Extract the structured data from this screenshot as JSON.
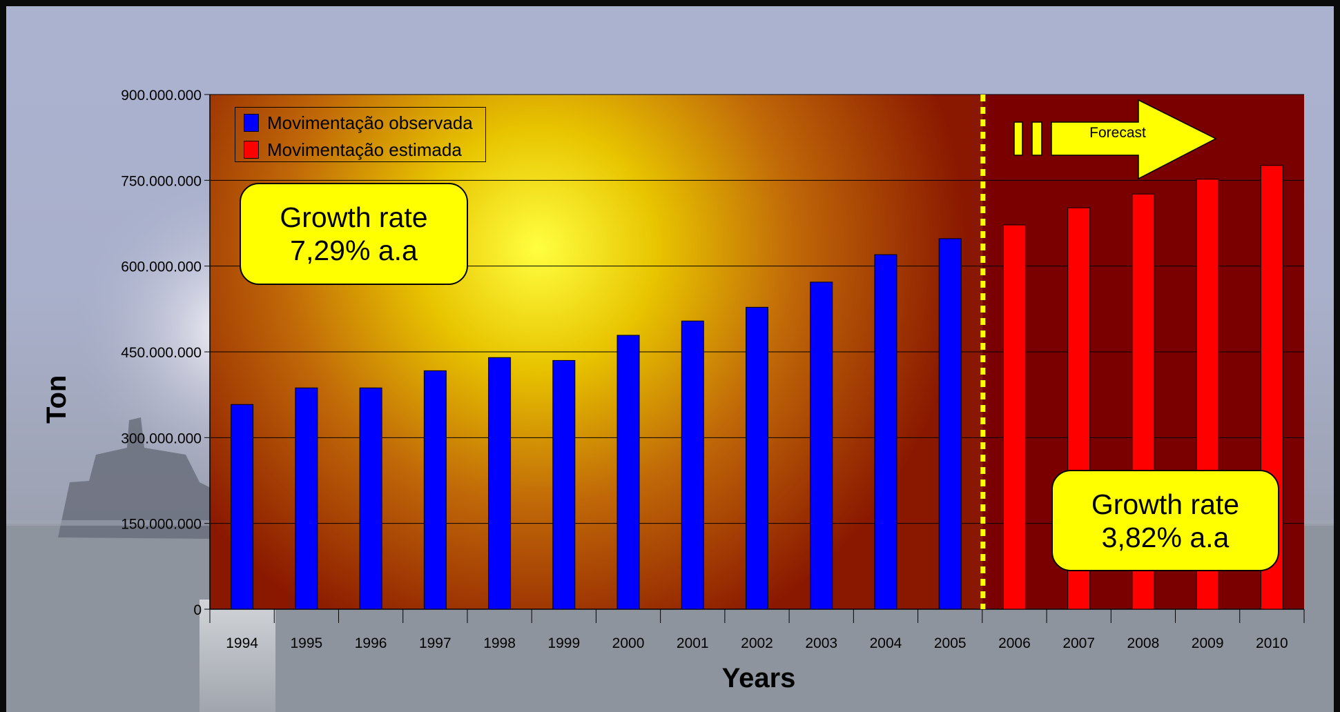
{
  "colors": {
    "observed": "#0000ff",
    "estimated": "#ff0000",
    "callout": "#ffff00",
    "divider": "#ffff00",
    "forecast_arrow": "#ffff00",
    "forecast_region": "#7a0000"
  },
  "growth_rate_observed": [
    "Growth rate",
    "7,29% a.a"
  ],
  "growth_rate_estimated": [
    "Growth rate",
    "3,82% a.a"
  ],
  "forecast_label": "Forecast",
  "legend": {
    "observed_label": "Movimentação observada",
    "estimated_label": "Movimentação estimada"
  },
  "chart_data": {
    "type": "bar",
    "title": "",
    "xlabel": "Years",
    "ylabel": "Ton",
    "categories": [
      "1994",
      "1995",
      "1996",
      "1997",
      "1998",
      "1999",
      "2000",
      "2001",
      "2002",
      "2003",
      "2004",
      "2005",
      "2006",
      "2007",
      "2008",
      "2009",
      "2010"
    ],
    "ylim": [
      0,
      900000000
    ],
    "yticks": [
      0,
      150000000,
      300000000,
      450000000,
      600000000,
      750000000,
      900000000
    ],
    "ytick_labels": [
      "0",
      "150.000.000",
      "300.000.000",
      "450.000.000",
      "600.000.000",
      "750.000.000",
      "900.000.000"
    ],
    "grid": true,
    "legend_position": "top-left",
    "series": [
      {
        "name": "Movimentação observada",
        "color": "#0000ff",
        "values": [
          358000000,
          387000000,
          387000000,
          417000000,
          440000000,
          435000000,
          479000000,
          504000000,
          528000000,
          572000000,
          620000000,
          648000000,
          null,
          null,
          null,
          null,
          null
        ]
      },
      {
        "name": "Movimentação estimada",
        "color": "#ff0000",
        "values": [
          null,
          null,
          null,
          null,
          null,
          null,
          null,
          null,
          null,
          null,
          null,
          null,
          672000000,
          702000000,
          726000000,
          752000000,
          776000000
        ]
      }
    ],
    "forecast_divider_between": [
      "2005",
      "2006"
    ]
  }
}
